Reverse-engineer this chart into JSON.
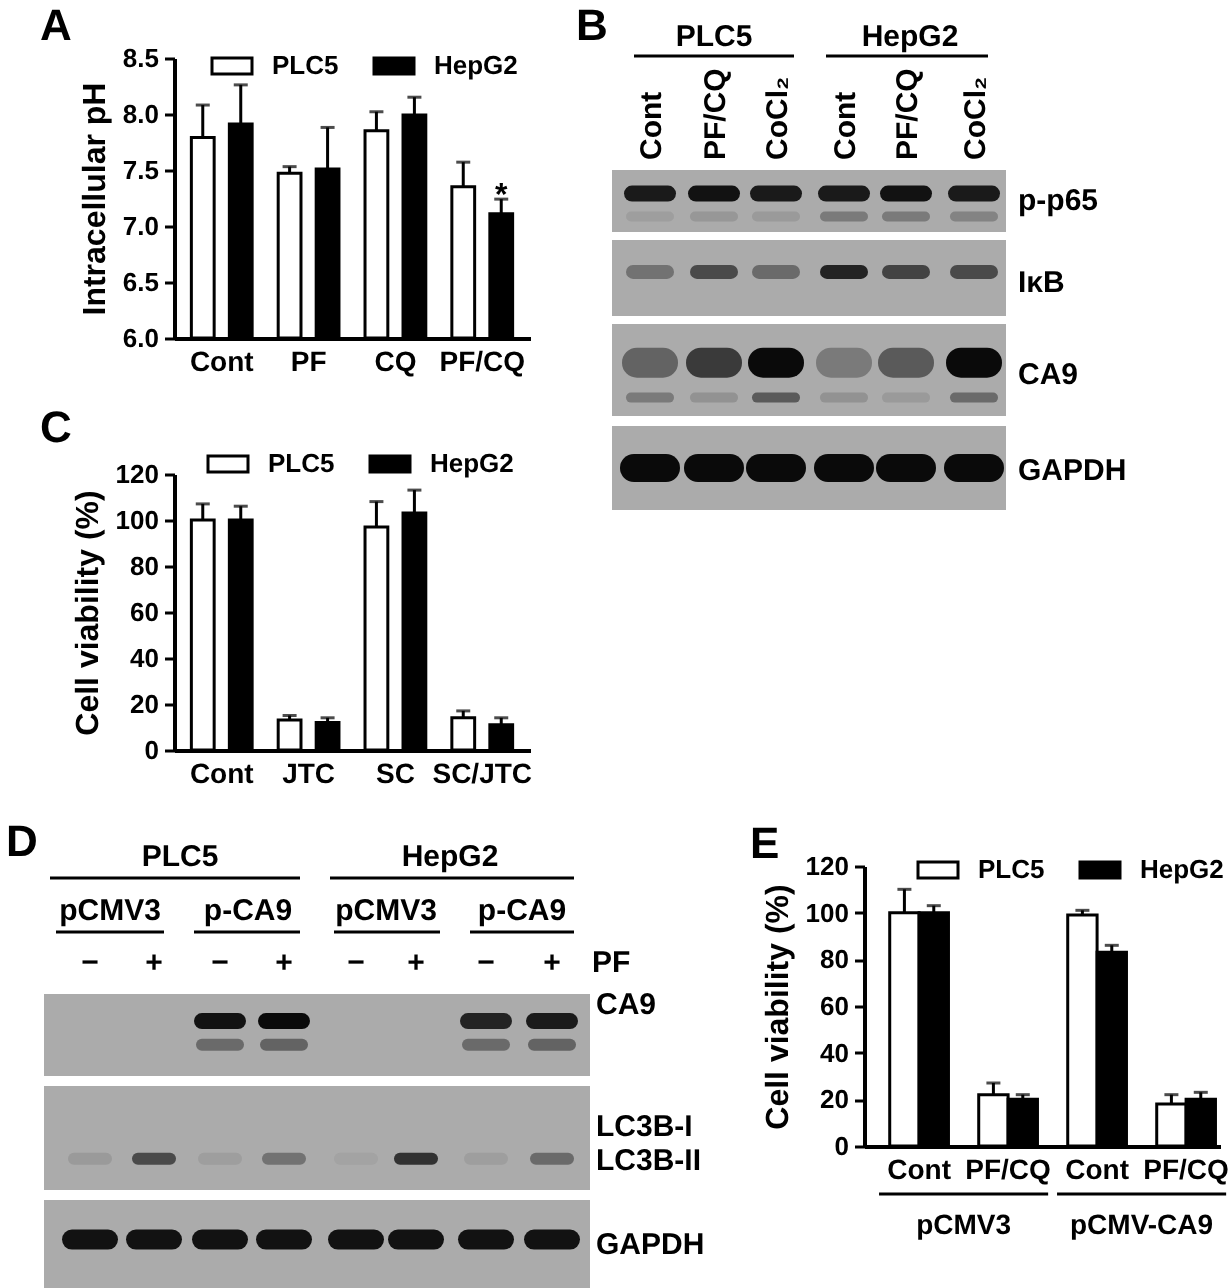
{
  "chart_data": [
    {
      "type": "bar",
      "title": "A",
      "ylabel": "Intracellular pH",
      "categories": [
        "Cont",
        "PF",
        "CQ",
        "PF/CQ"
      ],
      "series": [
        {
          "name": "PLC5",
          "color": "#ffffff",
          "values": [
            7.79,
            7.47,
            7.85,
            7.35
          ],
          "errors": [
            [
              7.79,
              8.08
            ],
            [
              7.47,
              7.53
            ],
            [
              7.85,
              8.02
            ],
            [
              7.35,
              7.57
            ]
          ]
        },
        {
          "name": "HepG2",
          "color": "#000000",
          "values": [
            7.91,
            7.51,
            7.99,
            7.11
          ],
          "errors": [
            [
              7.91,
              8.26
            ],
            [
              7.51,
              7.88
            ],
            [
              7.99,
              8.15
            ],
            [
              7.11,
              7.24
            ]
          ]
        }
      ],
      "ylim": [
        6,
        8.5
      ],
      "yticks": [
        {
          "value": 6,
          "label": "6.0"
        },
        6.5,
        {
          "value": 7,
          "label": "7.0"
        },
        7.5,
        {
          "value": 8,
          "label": "8.0"
        },
        8.5
      ],
      "legend": "top",
      "annotations": [
        {
          "text": "*",
          "x": "PF/CQ",
          "y": 7.35
        }
      ]
    },
    {
      "type": "other",
      "title": "B",
      "annotations": [
        "PLC5",
        "HepG2",
        "Cont",
        "PF/CQ",
        "CoCl₂",
        "Cont",
        "PF/CQ",
        "CoCl₂",
        "p-p65",
        "IκB",
        "CA9",
        "GAPDH"
      ]
    },
    {
      "type": "bar",
      "title": "C",
      "ylabel": "Cell viability (%)",
      "categories": [
        "Cont",
        "JTC",
        "SC",
        "SC/JTC"
      ],
      "series": [
        {
          "name": "PLC5",
          "color": "#ffffff",
          "values": [
            100,
            13,
            97,
            14
          ],
          "errors": [
            [
              100,
              107
            ],
            [
              13,
              15
            ],
            [
              97,
              108
            ],
            [
              14,
              17
            ]
          ]
        },
        {
          "name": "HepG2",
          "color": "#000000",
          "values": [
            100,
            12,
            103,
            11
          ],
          "errors": [
            [
              100,
              106
            ],
            [
              12,
              14
            ],
            [
              103,
              113
            ],
            [
              11,
              14
            ]
          ]
        }
      ],
      "ylim": [
        0,
        120
      ],
      "yticks": [
        0,
        20,
        40,
        60,
        80,
        100,
        120
      ],
      "legend": "top"
    },
    {
      "type": "other",
      "title": "D",
      "annotations": [
        "PLC5",
        "HepG2",
        "pCMV3",
        "p-CA9",
        "pCMV3",
        "p-CA9",
        "−",
        "+",
        "−",
        "+",
        "−",
        "+",
        "−",
        "+",
        "PF",
        "CA9",
        "LC3B-I",
        "LC3B-II",
        "GAPDH"
      ]
    },
    {
      "type": "bar",
      "title": "E",
      "ylabel": "Cell viability (%)",
      "categories": [
        "Cont",
        "PF/CQ",
        "Cont",
        "PF/CQ"
      ],
      "series": [
        {
          "name": "PLC5",
          "color": "#ffffff",
          "values": [
            100,
            22,
            99,
            18
          ],
          "errors": [
            [
              100,
              110
            ],
            [
              22,
              27
            ],
            [
              99,
              101
            ],
            [
              18,
              22
            ]
          ]
        },
        {
          "name": "HepG2",
          "color": "#000000",
          "values": [
            100,
            20,
            83,
            20
          ],
          "errors": [
            [
              100,
              103
            ],
            [
              20,
              22
            ],
            [
              83,
              86
            ],
            [
              20,
              23
            ]
          ]
        }
      ],
      "ylim": [
        0,
        120
      ],
      "yticks": [
        0,
        20,
        40,
        60,
        80,
        100,
        120
      ],
      "legend": "top",
      "annotations": [
        "pCMV3",
        "pCMV-CA9"
      ]
    }
  ]
}
